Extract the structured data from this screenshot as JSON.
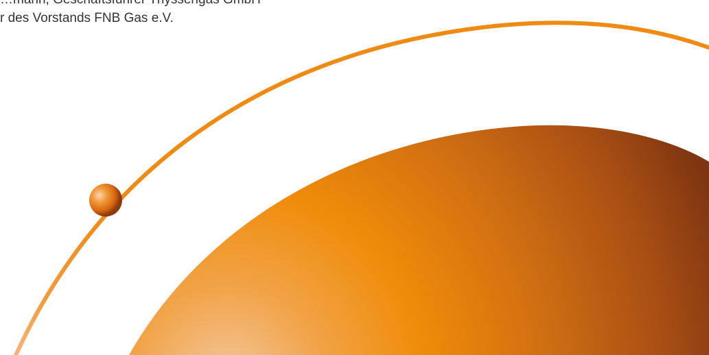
{
  "caption": {
    "line1": "…mann, Geschäftsführer Thyssengas GmbH",
    "line2": "r des Vorstands FNB Gas e.V."
  },
  "graphic": {
    "sphere_colors": [
      "#f7b36a",
      "#f08a00",
      "#8d3f12"
    ],
    "ring_color": "#f08a00",
    "ball_colors": [
      "#f9c08a",
      "#ea7a10",
      "#9b3d0e"
    ]
  }
}
